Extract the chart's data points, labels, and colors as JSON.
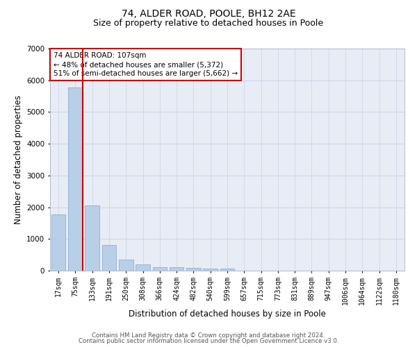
{
  "title1": "74, ALDER ROAD, POOLE, BH12 2AE",
  "title2": "Size of property relative to detached houses in Poole",
  "xlabel": "Distribution of detached houses by size in Poole",
  "ylabel": "Number of detached properties",
  "categories": [
    "17sqm",
    "75sqm",
    "133sqm",
    "191sqm",
    "250sqm",
    "308sqm",
    "366sqm",
    "424sqm",
    "482sqm",
    "540sqm",
    "599sqm",
    "657sqm",
    "715sqm",
    "773sqm",
    "831sqm",
    "889sqm",
    "947sqm",
    "1006sqm",
    "1064sqm",
    "1122sqm",
    "1180sqm"
  ],
  "values": [
    1780,
    5780,
    2060,
    820,
    340,
    195,
    120,
    110,
    95,
    70,
    70,
    0,
    0,
    0,
    0,
    0,
    0,
    0,
    0,
    0,
    0
  ],
  "bar_color": "#b8cfe8",
  "bar_edge_color": "#8aafd6",
  "vline_color": "#cc0000",
  "vline_x": 1.43,
  "annotation_text": "74 ALDER ROAD: 107sqm\n← 48% of detached houses are smaller (5,372)\n51% of semi-detached houses are larger (5,662) →",
  "annotation_box_color": "#cc0000",
  "ylim": [
    0,
    7000
  ],
  "yticks": [
    0,
    1000,
    2000,
    3000,
    4000,
    5000,
    6000,
    7000
  ],
  "grid_color": "#ccd5e8",
  "bg_color": "#e8edf5",
  "footer1": "Contains HM Land Registry data © Crown copyright and database right 2024.",
  "footer2": "Contains public sector information licensed under the Open Government Licence v3.0.",
  "title1_fontsize": 10,
  "title2_fontsize": 9,
  "axis_label_fontsize": 8.5,
  "tick_fontsize": 7,
  "ann_fontsize": 7.5
}
